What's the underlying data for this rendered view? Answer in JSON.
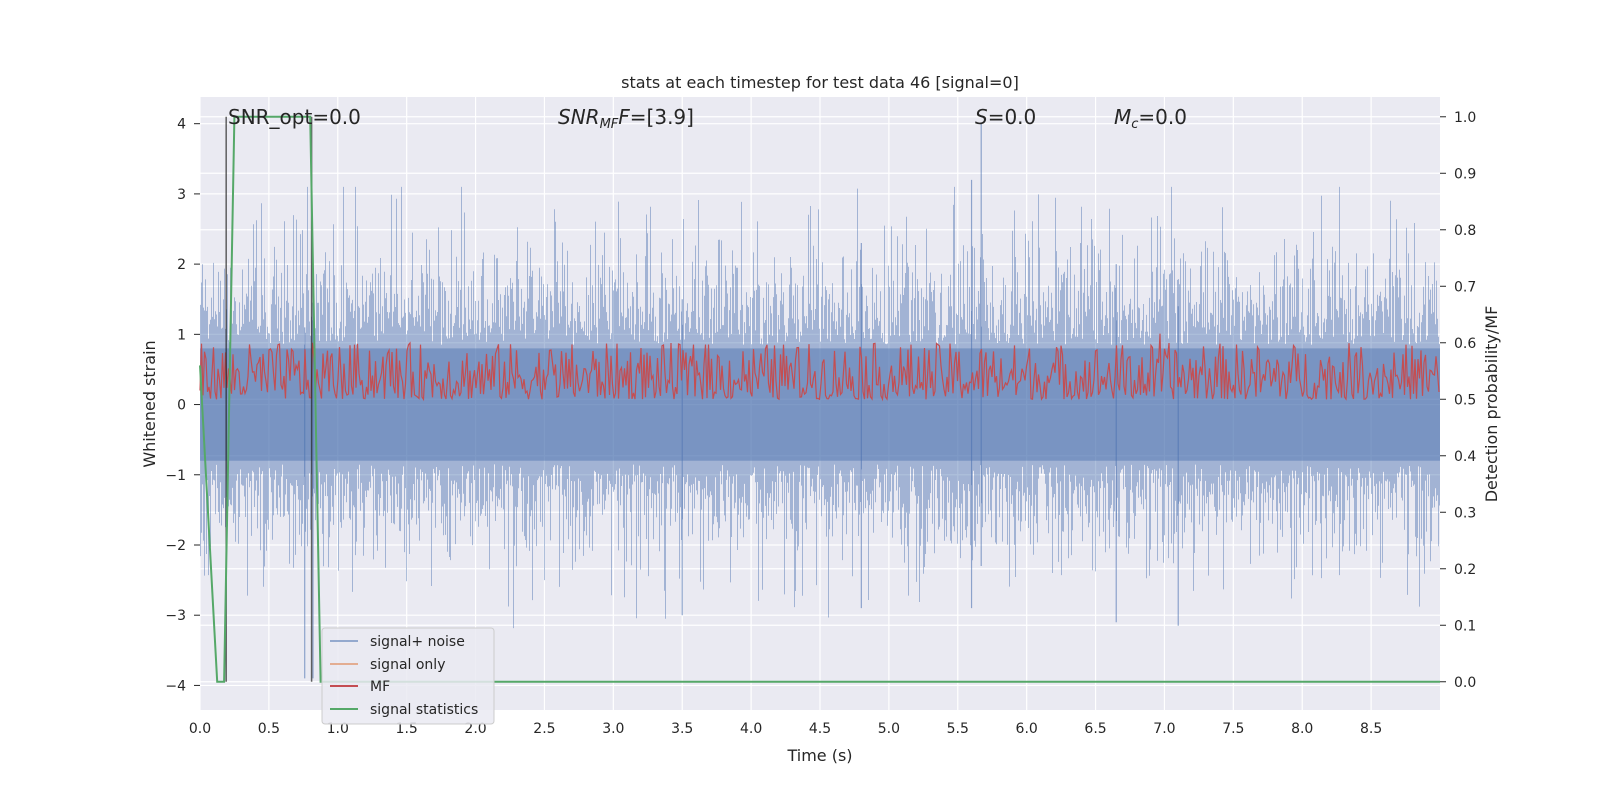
{
  "chart_data": {
    "type": "line",
    "title": "stats at each timestep for test data 46 [signal=0]",
    "xlabel": "Time (s)",
    "ylabel_left": "Whitened strain",
    "ylabel_right": "Detection probability/MF",
    "xlim": [
      0.0,
      9.0
    ],
    "ylim_left": [
      -4.35,
      4.38
    ],
    "ylim_right": [
      -0.05,
      1.035
    ],
    "x_ticks": [
      "0.0",
      "0.5",
      "1.0",
      "1.5",
      "2.0",
      "2.5",
      "3.0",
      "3.5",
      "4.0",
      "4.5",
      "5.0",
      "5.5",
      "6.0",
      "6.5",
      "7.0",
      "7.5",
      "8.0",
      "8.5"
    ],
    "y_ticks_left": [
      "4",
      "3",
      "2",
      "1",
      "0",
      "−1",
      "−2",
      "−3",
      "−4"
    ],
    "y_ticks_right": [
      "1.0",
      "0.9",
      "0.8",
      "0.7",
      "0.6",
      "0.5",
      "0.4",
      "0.3",
      "0.2",
      "0.1",
      "0.0"
    ],
    "grid": true,
    "legend_position": "lower-left",
    "annotations": {
      "snr_opt": "SNR_opt=0.0",
      "snr_mf_label": "SNR",
      "snr_mf_sub": "MF",
      "snr_mf_value": "=[3.9]",
      "s_label": "S",
      "s_value": "=0.0",
      "mc_label": "M",
      "mc_sub": "c",
      "mc_value": "=0.0"
    },
    "series": [
      {
        "name": "signal+ noise",
        "color": "#4c72b0",
        "axis": "left",
        "approx_range": [
          -3.9,
          4.0
        ]
      },
      {
        "name": "signal only",
        "color": "#dd8452",
        "axis": "left",
        "values": []
      },
      {
        "name": "MF",
        "color": "#c44e52",
        "axis": "right",
        "approx_range": [
          0.5,
          0.62
        ]
      },
      {
        "name": "signal statistics",
        "color": "#55a868",
        "axis": "right",
        "x": [
          0.0,
          0.125,
          0.175,
          0.25,
          0.8,
          0.875,
          9.0
        ],
        "values": [
          0.56,
          0.0,
          0.0,
          1.0,
          1.0,
          0.0,
          0.0
        ]
      }
    ],
    "vlines": [
      0.19,
      0.81
    ]
  }
}
